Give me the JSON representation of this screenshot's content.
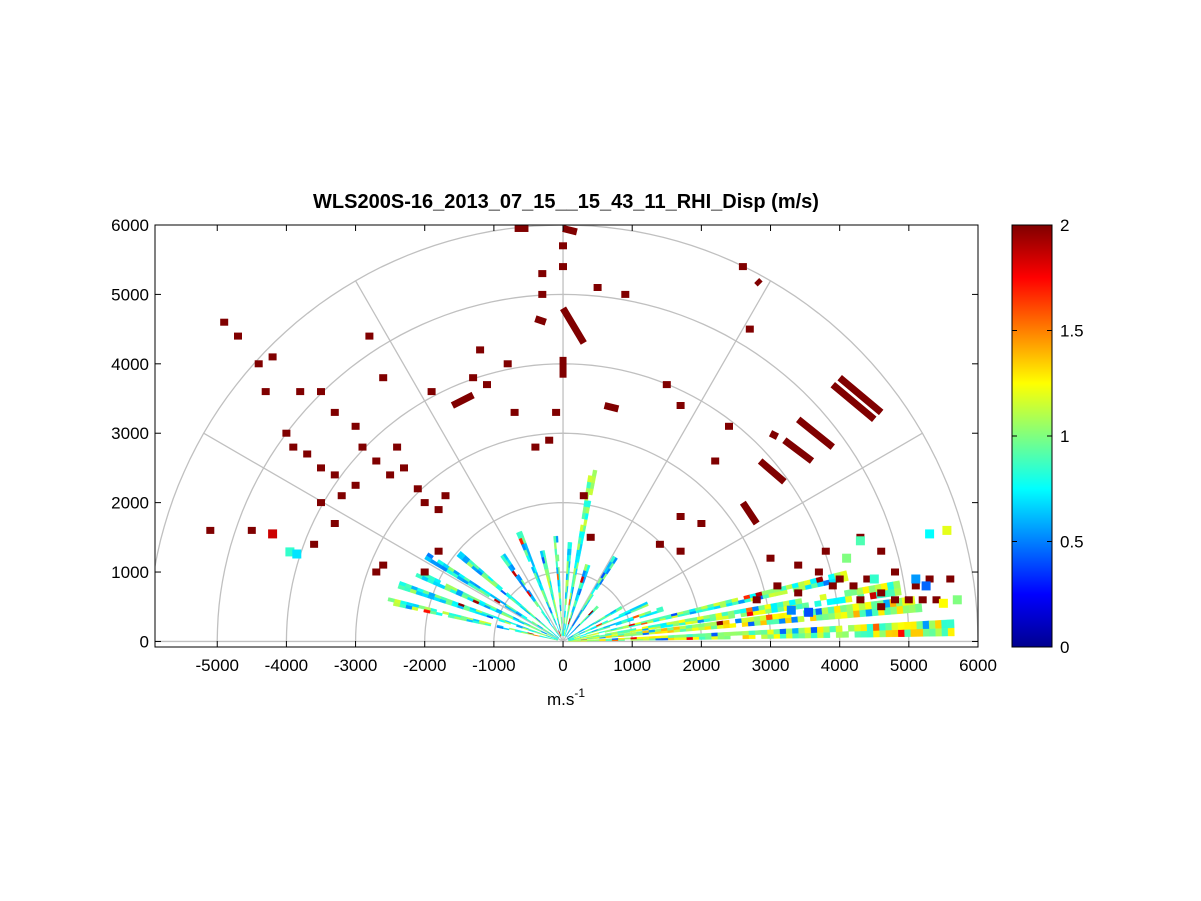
{
  "chart_data": {
    "type": "heatmap",
    "subtype": "polar-rhi-sector",
    "title": "WLS200S-16_2013_07_15__15_43_11_RHI_Disp (m/s)",
    "xlabel": {
      "base": "m.s",
      "superscript": "-1"
    },
    "ylabel": "",
    "xlim": [
      -5900,
      6000
    ],
    "ylim": [
      -80,
      6000
    ],
    "x_ticks": [
      "-5000",
      "-4000",
      "-3000",
      "-2000",
      "-1000",
      "0",
      "1000",
      "2000",
      "3000",
      "4000",
      "5000",
      "6000"
    ],
    "x_tick_values": [
      -5000,
      -4000,
      -3000,
      -2000,
      -1000,
      0,
      1000,
      2000,
      3000,
      4000,
      5000,
      6000
    ],
    "y_ticks": [
      "0",
      "1000",
      "2000",
      "3000",
      "4000",
      "5000",
      "6000"
    ],
    "y_tick_values": [
      0,
      1000,
      2000,
      3000,
      4000,
      5000,
      6000
    ],
    "polar_grid": {
      "range_rings": [
        1000,
        2000,
        3000,
        4000,
        5000,
        6000
      ],
      "spokes_deg": [
        0,
        30,
        60,
        90,
        120,
        150,
        180
      ],
      "color": "#c0c0c0"
    },
    "colorbar": {
      "min": 0,
      "max": 2,
      "colormap": "jet",
      "ticks": [
        "0",
        "0.5",
        "1",
        "1.5",
        "2"
      ],
      "tick_values": [
        0,
        0.5,
        1,
        1.5,
        2
      ]
    },
    "scan_bands": [
      {
        "elev_deg": 2,
        "halfwidth_deg": 1.2,
        "r_max": 5600,
        "mean": 1.1
      },
      {
        "elev_deg": 6,
        "halfwidth_deg": 1.3,
        "r_max": 5200,
        "mean": 1.15
      },
      {
        "elev_deg": 9,
        "halfwidth_deg": 1.2,
        "r_max": 4900,
        "mean": 1.0
      },
      {
        "elev_deg": 13,
        "halfwidth_deg": 1.0,
        "r_max": 4200,
        "mean": 0.95
      },
      {
        "elev_deg": 18,
        "halfwidth_deg": 1.3,
        "r_max": 1500,
        "mean": 0.85
      },
      {
        "elev_deg": 24,
        "halfwidth_deg": 1.3,
        "r_max": 1300,
        "mean": 0.8
      },
      {
        "elev_deg": 30,
        "halfwidth_deg": 1.2,
        "r_max": 900,
        "mean": 0.85
      },
      {
        "elev_deg": 45,
        "halfwidth_deg": 1.5,
        "r_max": 650,
        "mean": 0.8
      },
      {
        "elev_deg": 58,
        "halfwidth_deg": 1.5,
        "r_max": 1400,
        "mean": 0.75
      },
      {
        "elev_deg": 72,
        "halfwidth_deg": 1.8,
        "r_max": 1100,
        "mean": 0.8
      },
      {
        "elev_deg": 80,
        "halfwidth_deg": 1.3,
        "r_max": 2500,
        "mean": 0.9
      },
      {
        "elev_deg": 86,
        "halfwidth_deg": 1.2,
        "r_max": 1400,
        "mean": 0.85
      },
      {
        "elev_deg": 94,
        "halfwidth_deg": 1.2,
        "r_max": 1500,
        "mean": 0.8
      },
      {
        "elev_deg": 103,
        "halfwidth_deg": 1.4,
        "r_max": 1300,
        "mean": 0.9
      },
      {
        "elev_deg": 112,
        "halfwidth_deg": 1.4,
        "r_max": 1700,
        "mean": 0.8
      },
      {
        "elev_deg": 125,
        "halfwidth_deg": 1.5,
        "r_max": 1500,
        "mean": 0.75
      },
      {
        "elev_deg": 140,
        "halfwidth_deg": 1.3,
        "r_max": 1900,
        "mean": 0.8
      },
      {
        "elev_deg": 148,
        "halfwidth_deg": 1.3,
        "r_max": 2300,
        "mean": 0.75
      },
      {
        "elev_deg": 155,
        "halfwidth_deg": 1.3,
        "r_max": 2300,
        "mean": 0.8
      },
      {
        "elev_deg": 161,
        "halfwidth_deg": 1.2,
        "r_max": 2500,
        "mean": 0.85
      },
      {
        "elev_deg": 167,
        "halfwidth_deg": 1.1,
        "r_max": 2600,
        "mean": 0.9
      }
    ],
    "saturated_segments": [
      {
        "x1": 4000,
        "y1": 3800,
        "x2": 4600,
        "y2": 3300
      },
      {
        "x1": 3900,
        "y1": 3700,
        "x2": 4500,
        "y2": 3200
      },
      {
        "x1": 3400,
        "y1": 3200,
        "x2": 3900,
        "y2": 2800
      },
      {
        "x1": 3200,
        "y1": 2900,
        "x2": 3600,
        "y2": 2600
      },
      {
        "x1": 2850,
        "y1": 2600,
        "x2": 3200,
        "y2": 2300
      },
      {
        "x1": 2800,
        "y1": 5200,
        "x2": 2850,
        "y2": 5150
      },
      {
        "x1": 2600,
        "y1": 2000,
        "x2": 2800,
        "y2": 1700
      },
      {
        "x1": 3000,
        "y1": 3000,
        "x2": 3100,
        "y2": 2950
      },
      {
        "x1": 0,
        "y1": 4800,
        "x2": 300,
        "y2": 4300
      },
      {
        "x1": -400,
        "y1": 4650,
        "x2": -250,
        "y2": 4600
      },
      {
        "x1": 0,
        "y1": 4100,
        "x2": 0,
        "y2": 3800
      },
      {
        "x1": -1600,
        "y1": 3400,
        "x2": -1300,
        "y2": 3550
      },
      {
        "x1": 600,
        "y1": 3400,
        "x2": 800,
        "y2": 3350
      },
      {
        "x1": -700,
        "y1": 5950,
        "x2": -500,
        "y2": 5950
      },
      {
        "x1": 0,
        "y1": 5950,
        "x2": 200,
        "y2": 5900
      }
    ],
    "saturated_cells": [
      [
        -4400,
        4000
      ],
      [
        -4300,
        3600
      ],
      [
        -4000,
        3000
      ],
      [
        -4200,
        4100
      ],
      [
        -3800,
        3600
      ],
      [
        -3500,
        3600
      ],
      [
        -3900,
        2800
      ],
      [
        -3700,
        2700
      ],
      [
        -3500,
        2500
      ],
      [
        -3300,
        2400
      ],
      [
        -3200,
        2100
      ],
      [
        -3000,
        2250
      ],
      [
        -2900,
        2800
      ],
      [
        -2700,
        2600
      ],
      [
        -2500,
        2400
      ],
      [
        -2300,
        2500
      ],
      [
        -2100,
        2200
      ],
      [
        -2000,
        2000
      ],
      [
        -1800,
        1900
      ],
      [
        -1700,
        2100
      ],
      [
        -3500,
        2000
      ],
      [
        -3300,
        1700
      ],
      [
        -3600,
        1400
      ],
      [
        -4500,
        1600
      ],
      [
        -5100,
        1600
      ],
      [
        -2800,
        4400
      ],
      [
        -2600,
        3800
      ],
      [
        -1900,
        3600
      ],
      [
        -1200,
        4200
      ],
      [
        -800,
        4000
      ],
      [
        -700,
        3300
      ],
      [
        -1100,
        3700
      ],
      [
        -1800,
        1300
      ],
      [
        -2000,
        1000
      ],
      [
        -2700,
        1000
      ],
      [
        -2600,
        1100
      ],
      [
        -300,
        5300
      ],
      [
        -300,
        5000
      ],
      [
        0,
        5400
      ],
      [
        0,
        5700
      ],
      [
        500,
        5100
      ],
      [
        900,
        5000
      ],
      [
        1500,
        3700
      ],
      [
        1700,
        3400
      ],
      [
        2400,
        3100
      ],
      [
        2200,
        2600
      ],
      [
        2000,
        1700
      ],
      [
        1400,
        1400
      ],
      [
        1700,
        1300
      ],
      [
        2600,
        5400
      ],
      [
        2700,
        4500
      ],
      [
        1700,
        1800
      ],
      [
        3000,
        1200
      ],
      [
        3400,
        1100
      ],
      [
        3700,
        1000
      ],
      [
        4000,
        900
      ],
      [
        4200,
        800
      ],
      [
        4400,
        900
      ],
      [
        4600,
        700
      ],
      [
        4800,
        600
      ],
      [
        5000,
        600
      ],
      [
        5200,
        600
      ],
      [
        5400,
        600
      ],
      [
        3800,
        1300
      ],
      [
        4100,
        1200
      ],
      [
        4300,
        1500
      ],
      [
        4600,
        1300
      ],
      [
        4800,
        1000
      ],
      [
        5100,
        800
      ],
      [
        5300,
        900
      ],
      [
        5600,
        900
      ],
      [
        3900,
        800
      ],
      [
        4300,
        600
      ],
      [
        4600,
        500
      ],
      [
        3400,
        700
      ],
      [
        3100,
        800
      ],
      [
        2800,
        600
      ],
      [
        300,
        2100
      ],
      [
        400,
        1500
      ],
      [
        -100,
        3300
      ],
      [
        -200,
        2900
      ],
      [
        -400,
        2800
      ],
      [
        -4900,
        4600
      ],
      [
        -4700,
        4400
      ],
      [
        -3300,
        3300
      ],
      [
        -3000,
        3100
      ],
      [
        -1300,
        3800
      ],
      [
        -2400,
        2800
      ]
    ],
    "isolated_values": [
      [
        -4200,
        1550,
        1.85
      ],
      [
        -3950,
        1290,
        0.85
      ],
      [
        -3850,
        1260,
        0.7
      ],
      [
        4100,
        1200,
        1.0
      ],
      [
        4300,
        1450,
        0.9
      ],
      [
        5300,
        1550,
        0.75
      ],
      [
        5550,
        1600,
        1.2
      ],
      [
        5100,
        900,
        0.55
      ],
      [
        5250,
        800,
        0.45
      ],
      [
        5700,
        600,
        1.0
      ],
      [
        5500,
        550,
        1.25
      ],
      [
        4500,
        900,
        0.85
      ],
      [
        3300,
        450,
        0.5
      ],
      [
        3550,
        420,
        0.4
      ]
    ]
  }
}
